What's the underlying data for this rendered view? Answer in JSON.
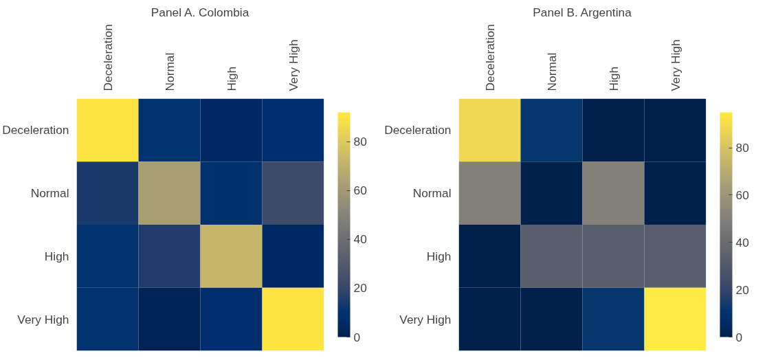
{
  "chart_data": [
    {
      "type": "heatmap",
      "title": "Panel A. Colombia",
      "categories": [
        "Deceleration",
        "Normal",
        "High",
        "Very High"
      ],
      "y_categories": [
        "Deceleration",
        "Normal",
        "High",
        "Very High"
      ],
      "cells": [
        [
          90,
          10,
          5,
          8
        ],
        [
          14,
          62,
          9,
          22
        ],
        [
          10,
          15,
          72,
          5
        ],
        [
          10,
          2,
          7,
          90
        ]
      ],
      "clim": [
        0,
        92
      ],
      "cticks": [
        0,
        20,
        40,
        60,
        80
      ],
      "grid": false
    },
    {
      "type": "heatmap",
      "title": "Panel B. Argentina",
      "categories": [
        "Deceleration",
        "Normal",
        "High",
        "Very High"
      ],
      "y_categories": [
        "Deceleration",
        "Normal",
        "High",
        "Very High"
      ],
      "cells": [
        [
          88,
          12,
          0,
          0
        ],
        [
          50,
          0,
          50,
          0
        ],
        [
          0,
          33,
          33,
          33
        ],
        [
          0,
          0,
          12,
          95
        ]
      ],
      "clim": [
        0,
        95
      ],
      "cticks": [
        0,
        20,
        40,
        60,
        80
      ],
      "grid": false
    }
  ]
}
